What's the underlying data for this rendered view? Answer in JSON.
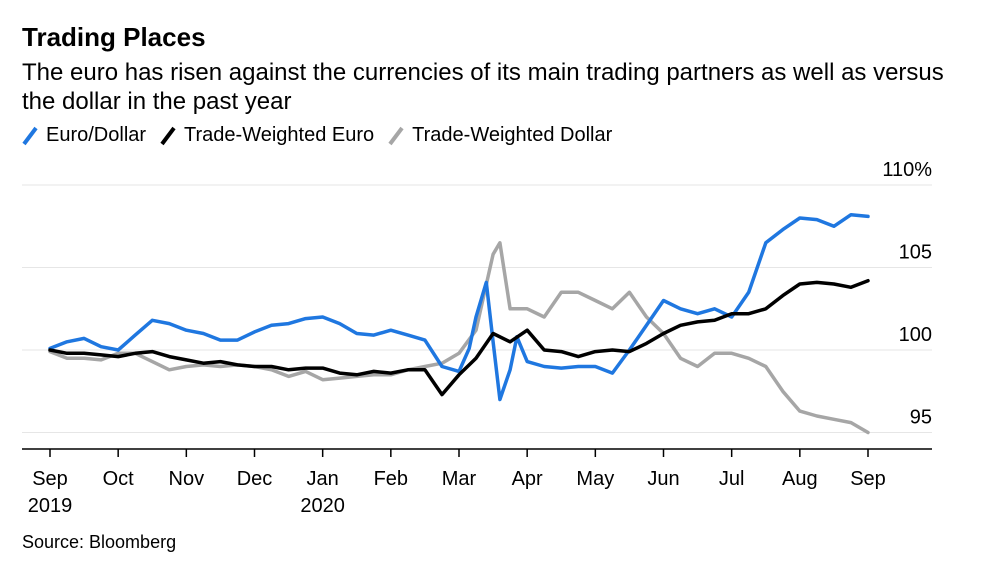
{
  "title": "Trading Places",
  "subtitle": "The euro has risen against the currencies of its main trading partners as well as versus the dollar in the past year",
  "source": "Source: Bloomberg",
  "colors": {
    "euro_dollar": "#1f77e0",
    "tw_euro": "#000000",
    "tw_dollar": "#a6a6a6",
    "grid": "#e6e6e6",
    "axis": "#000000"
  },
  "chart_data": {
    "type": "line",
    "ylim": [
      94,
      110
    ],
    "yticks": [
      {
        "value": 95,
        "label": "95"
      },
      {
        "value": 100,
        "label": "100"
      },
      {
        "value": 105,
        "label": "105"
      },
      {
        "value": 110,
        "label": "110%"
      }
    ],
    "xticks": [
      {
        "value": 0,
        "label": "Sep",
        "sublabel": "2019"
      },
      {
        "value": 1,
        "label": "Oct",
        "sublabel": ""
      },
      {
        "value": 2,
        "label": "Nov",
        "sublabel": ""
      },
      {
        "value": 3,
        "label": "Dec",
        "sublabel": ""
      },
      {
        "value": 4,
        "label": "Jan",
        "sublabel": "2020"
      },
      {
        "value": 5,
        "label": "Feb",
        "sublabel": ""
      },
      {
        "value": 6,
        "label": "Mar",
        "sublabel": ""
      },
      {
        "value": 7,
        "label": "Apr",
        "sublabel": ""
      },
      {
        "value": 8,
        "label": "May",
        "sublabel": ""
      },
      {
        "value": 9,
        "label": "Jun",
        "sublabel": ""
      },
      {
        "value": 10,
        "label": "Jul",
        "sublabel": ""
      },
      {
        "value": 11,
        "label": "Aug",
        "sublabel": ""
      },
      {
        "value": 12,
        "label": "Sep",
        "sublabel": ""
      }
    ],
    "series": [
      {
        "name": "Euro/Dollar",
        "x": [
          0,
          0.25,
          0.5,
          0.75,
          1,
          1.25,
          1.5,
          1.75,
          2,
          2.25,
          2.5,
          2.75,
          3,
          3.25,
          3.5,
          3.75,
          4,
          4.25,
          4.5,
          4.75,
          5,
          5.25,
          5.5,
          5.75,
          6,
          6.15,
          6.25,
          6.4,
          6.5,
          6.6,
          6.75,
          6.85,
          7,
          7.25,
          7.5,
          7.75,
          8,
          8.25,
          8.5,
          8.75,
          9,
          9.25,
          9.5,
          9.75,
          10,
          10.25,
          10.5,
          10.75,
          11,
          11.25,
          11.5,
          11.75,
          12
        ],
        "values": [
          100.1,
          100.5,
          100.7,
          100.2,
          100.0,
          100.9,
          101.8,
          101.6,
          101.2,
          101.0,
          100.6,
          100.6,
          101.1,
          101.5,
          101.6,
          101.9,
          102.0,
          101.6,
          101.0,
          100.9,
          101.2,
          100.9,
          100.6,
          99.0,
          98.7,
          100.1,
          102.0,
          104.1,
          100.5,
          97.0,
          98.8,
          100.8,
          99.3,
          99.0,
          98.9,
          99.0,
          99.0,
          98.6,
          100.0,
          101.5,
          103.0,
          102.5,
          102.2,
          102.5,
          102.0,
          103.5,
          106.5,
          107.3,
          108.0,
          107.9,
          107.5,
          108.2,
          108.1
        ]
      },
      {
        "name": "Trade-Weighted Euro",
        "x": [
          0,
          0.25,
          0.5,
          0.75,
          1,
          1.25,
          1.5,
          1.75,
          2,
          2.25,
          2.5,
          2.75,
          3,
          3.25,
          3.5,
          3.75,
          4,
          4.25,
          4.5,
          4.75,
          5,
          5.25,
          5.5,
          5.75,
          6,
          6.25,
          6.5,
          6.75,
          7,
          7.25,
          7.5,
          7.75,
          8,
          8.25,
          8.5,
          8.75,
          9,
          9.25,
          9.5,
          9.75,
          10,
          10.25,
          10.5,
          10.75,
          11,
          11.25,
          11.5,
          11.75,
          12
        ],
        "values": [
          100.0,
          99.8,
          99.8,
          99.7,
          99.6,
          99.8,
          99.9,
          99.6,
          99.4,
          99.2,
          99.3,
          99.1,
          99.0,
          99.0,
          98.8,
          98.9,
          98.9,
          98.6,
          98.5,
          98.7,
          98.6,
          98.8,
          98.8,
          97.3,
          98.5,
          99.5,
          101.0,
          100.5,
          101.2,
          100.0,
          99.9,
          99.6,
          99.9,
          100.0,
          99.9,
          100.4,
          101.0,
          101.5,
          101.7,
          101.8,
          102.2,
          102.2,
          102.5,
          103.3,
          104.0,
          104.1,
          104.0,
          103.8,
          104.2
        ]
      },
      {
        "name": "Trade-Weighted Dollar",
        "x": [
          0,
          0.25,
          0.5,
          0.75,
          1,
          1.25,
          1.5,
          1.75,
          2,
          2.25,
          2.5,
          2.75,
          3,
          3.25,
          3.5,
          3.75,
          4,
          4.25,
          4.5,
          4.75,
          5,
          5.25,
          5.5,
          5.75,
          6,
          6.25,
          6.5,
          6.6,
          6.75,
          7,
          7.25,
          7.5,
          7.75,
          8,
          8.25,
          8.5,
          8.75,
          9,
          9.25,
          9.5,
          9.75,
          10,
          10.25,
          10.5,
          10.75,
          11,
          11.25,
          11.5,
          11.75,
          12
        ],
        "values": [
          99.9,
          99.5,
          99.5,
          99.4,
          99.8,
          99.8,
          99.3,
          98.8,
          99.0,
          99.1,
          99.0,
          99.1,
          99.0,
          98.8,
          98.4,
          98.7,
          98.2,
          98.3,
          98.4,
          98.5,
          98.5,
          98.8,
          99.0,
          99.2,
          99.8,
          101.2,
          105.8,
          106.5,
          102.5,
          102.5,
          102.0,
          103.5,
          103.5,
          103.0,
          102.5,
          103.5,
          102.0,
          101.0,
          99.5,
          99.0,
          99.8,
          99.8,
          99.5,
          99.0,
          97.5,
          96.3,
          96.0,
          95.8,
          95.6,
          95.0
        ]
      }
    ]
  }
}
